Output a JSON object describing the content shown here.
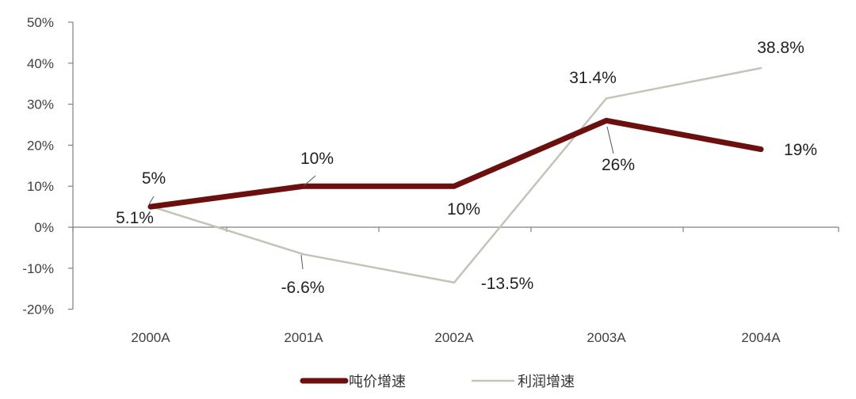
{
  "chart_data": {
    "type": "line",
    "categories": [
      "2000A",
      "2001A",
      "2002A",
      "2003A",
      "2004A"
    ],
    "ylim": [
      -20,
      50
    ],
    "yticks": [
      -20,
      -10,
      0,
      10,
      20,
      30,
      40,
      50
    ],
    "ytick_labels": [
      "-20%",
      "-10%",
      "0%",
      "10%",
      "20%",
      "30%",
      "40%",
      "50%"
    ],
    "grid": false,
    "legend_position": "bottom",
    "series": [
      {
        "name": "吨价增速",
        "values": [
          5,
          10,
          10,
          26,
          19
        ],
        "labels": [
          "5%",
          "10%",
          "10%",
          "26%",
          "19%"
        ],
        "color": "#6b0f0f"
      },
      {
        "name": "利润增速",
        "values": [
          5.1,
          -6.6,
          -13.5,
          31.4,
          38.8
        ],
        "labels": [
          "5.1%",
          "-6.6%",
          "-13.5%",
          "31.4%",
          "38.8%"
        ],
        "color": "#c4c3b8"
      }
    ]
  }
}
